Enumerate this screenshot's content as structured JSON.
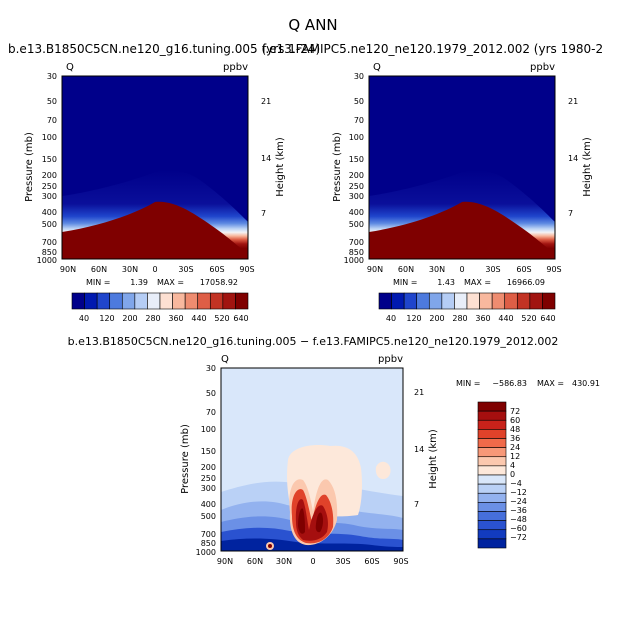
{
  "main_title": "Q ANN",
  "chart_data": [
    {
      "type": "heatmap",
      "title": "b.e13.B1850C5CN.ne120_g16.tuning.005 (yrs 1-24)",
      "field_label": "Q",
      "units_label": "ppbv",
      "ylabel": "Pressure (mb)",
      "right_label": "Height (km)",
      "x_ticks": [
        "90N",
        "60N",
        "30N",
        "0",
        "30S",
        "60S",
        "90S"
      ],
      "y_ticks": [
        "30",
        "50",
        "70",
        "100",
        "150",
        "200",
        "250",
        "300",
        "400",
        "500",
        "700",
        "850",
        "1000"
      ],
      "right_ticks": [
        "21",
        "14",
        "7"
      ],
      "min_label": "MIN =",
      "min_value": "1.39",
      "max_label": "MAX =",
      "max_value": "17058.92",
      "colorbar_ticks": [
        "40",
        "120",
        "200",
        "280",
        "360",
        "440",
        "520",
        "640"
      ]
    },
    {
      "type": "heatmap",
      "title": "f.e13.FAMIPC5.ne120_ne120.1979_2012.002 (yrs 1980-2",
      "field_label": "Q",
      "units_label": "ppbv",
      "ylabel": "Pressure (mb)",
      "right_label": "Height (km)",
      "x_ticks": [
        "90N",
        "60N",
        "30N",
        "0",
        "30S",
        "60S",
        "90S"
      ],
      "y_ticks": [
        "30",
        "50",
        "70",
        "100",
        "150",
        "200",
        "250",
        "300",
        "400",
        "500",
        "700",
        "850",
        "1000"
      ],
      "right_ticks": [
        "21",
        "14",
        "7"
      ],
      "min_label": "MIN =",
      "min_value": "1.43",
      "max_label": "MAX =",
      "max_value": "16966.09",
      "colorbar_ticks": [
        "40",
        "120",
        "200",
        "280",
        "360",
        "440",
        "520",
        "640"
      ]
    },
    {
      "type": "heatmap",
      "title": "b.e13.B1850C5CN.ne120_g16.tuning.005 − f.e13.FAMIPC5.ne120_ne120.1979_2012.002",
      "field_label": "Q",
      "units_label": "ppbv",
      "ylabel": "Pressure (mb)",
      "right_label": "Height (km)",
      "x_ticks": [
        "90N",
        "60N",
        "30N",
        "0",
        "30S",
        "60S",
        "90S"
      ],
      "y_ticks": [
        "30",
        "50",
        "70",
        "100",
        "150",
        "200",
        "250",
        "300",
        "400",
        "500",
        "700",
        "850",
        "1000"
      ],
      "right_ticks": [
        "21",
        "14",
        "7"
      ],
      "min_label": "MIN =",
      "min_value": "−586.83",
      "max_label": "MAX =",
      "max_value": "430.91",
      "colorbar_ticks": [
        "72",
        "60",
        "48",
        "36",
        "24",
        "12",
        "4",
        "0",
        "−4",
        "−12",
        "−24",
        "−36",
        "−48",
        "−60",
        "−72"
      ]
    }
  ],
  "colors": {
    "seq": [
      "#00008a",
      "#0019b0",
      "#1f45cc",
      "#4d7ade",
      "#80a6ea",
      "#b5cdf5",
      "#e8eef9",
      "#fde0d2",
      "#f8b89e",
      "#ee8c70",
      "#de5e46",
      "#c23324",
      "#a11410",
      "#7f0000"
    ],
    "div": [
      "#7f0000",
      "#a50f0f",
      "#c8221a",
      "#e0422a",
      "#f06a4a",
      "#f79878",
      "#fbc8ae",
      "#fde8da",
      "#d9e7fa",
      "#bad1f6",
      "#93b2ef",
      "#6b90e6",
      "#466fdb",
      "#2a52d0",
      "#123bbf",
      "#00239f"
    ]
  }
}
